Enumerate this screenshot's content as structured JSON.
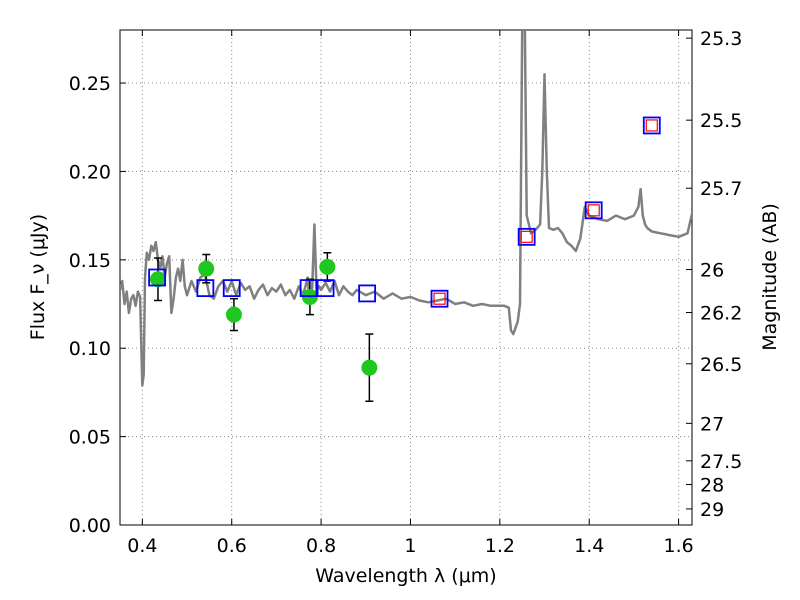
{
  "chart_data": {
    "type": "scatter",
    "xlabel": "Wavelength λ (μm)",
    "ylabel": "Flux F_ν (μJy)",
    "ylabel_right": "Magnitude (AB)",
    "xlim": [
      0.35,
      1.63
    ],
    "ylim": [
      0.0,
      0.28
    ],
    "grid": true,
    "x_ticks": [
      "0.4",
      "0.6",
      "0.8",
      "1",
      "1.2",
      "1.4",
      "1.6"
    ],
    "x_tick_values": [
      0.4,
      0.6,
      0.8,
      1.0,
      1.2,
      1.4,
      1.6
    ],
    "y_ticks": [
      "0.00",
      "0.05",
      "0.10",
      "0.15",
      "0.20",
      "0.25"
    ],
    "y_tick_values": [
      0.0,
      0.05,
      0.1,
      0.15,
      0.2,
      0.25
    ],
    "right_ticks": [
      "25.3",
      "25.5",
      "25.7",
      "26",
      "26.2",
      "26.5",
      "27",
      "27.5",
      "28",
      "29"
    ],
    "right_tick_flux": [
      0.2754,
      0.229,
      0.1905,
      0.1445,
      0.1202,
      0.0912,
      0.0575,
      0.0363,
      0.0229,
      0.0091
    ],
    "colors": {
      "spectrum": "#808080",
      "observed": "#1ec81e",
      "errorbar": "#000000",
      "model_band": "#0000ff",
      "model_band_inner": "#ff0000",
      "grid": "#888888"
    },
    "series": [
      {
        "marker": "spectrum-line",
        "x": [
          0.35,
          0.355,
          0.36,
          0.365,
          0.37,
          0.375,
          0.38,
          0.385,
          0.39,
          0.395,
          0.4,
          0.403,
          0.406,
          0.41,
          0.415,
          0.42,
          0.425,
          0.43,
          0.435,
          0.44,
          0.445,
          0.45,
          0.455,
          0.46,
          0.465,
          0.47,
          0.475,
          0.48,
          0.485,
          0.49,
          0.495,
          0.5,
          0.51,
          0.52,
          0.53,
          0.54,
          0.55,
          0.56,
          0.57,
          0.58,
          0.59,
          0.6,
          0.61,
          0.62,
          0.63,
          0.64,
          0.65,
          0.66,
          0.67,
          0.68,
          0.69,
          0.7,
          0.71,
          0.72,
          0.73,
          0.74,
          0.75,
          0.76,
          0.77,
          0.775,
          0.78,
          0.785,
          0.79,
          0.795,
          0.8,
          0.81,
          0.82,
          0.83,
          0.84,
          0.85,
          0.86,
          0.87,
          0.88,
          0.9,
          0.92,
          0.94,
          0.96,
          0.98,
          1.0,
          1.02,
          1.04,
          1.06,
          1.08,
          1.1,
          1.12,
          1.14,
          1.16,
          1.18,
          1.2,
          1.21,
          1.22,
          1.225,
          1.23,
          1.24,
          1.245,
          1.25,
          1.253,
          1.256,
          1.26,
          1.265,
          1.27,
          1.28,
          1.29,
          1.295,
          1.3,
          1.305,
          1.31,
          1.32,
          1.33,
          1.34,
          1.35,
          1.36,
          1.37,
          1.38,
          1.39,
          1.4,
          1.42,
          1.44,
          1.46,
          1.48,
          1.5,
          1.51,
          1.515,
          1.52,
          1.525,
          1.53,
          1.54,
          1.56,
          1.58,
          1.6,
          1.62,
          1.63
        ],
        "y": [
          0.133,
          0.138,
          0.125,
          0.132,
          0.12,
          0.128,
          0.13,
          0.124,
          0.132,
          0.129,
          0.079,
          0.085,
          0.14,
          0.154,
          0.15,
          0.158,
          0.155,
          0.16,
          0.15,
          0.145,
          0.152,
          0.14,
          0.148,
          0.152,
          0.12,
          0.128,
          0.14,
          0.145,
          0.138,
          0.15,
          0.135,
          0.13,
          0.138,
          0.132,
          0.14,
          0.142,
          0.13,
          0.128,
          0.135,
          0.138,
          0.132,
          0.138,
          0.13,
          0.137,
          0.133,
          0.135,
          0.128,
          0.133,
          0.136,
          0.13,
          0.134,
          0.132,
          0.136,
          0.13,
          0.133,
          0.128,
          0.135,
          0.13,
          0.14,
          0.125,
          0.134,
          0.17,
          0.132,
          0.135,
          0.133,
          0.137,
          0.132,
          0.138,
          0.13,
          0.135,
          0.132,
          0.13,
          0.133,
          0.13,
          0.132,
          0.128,
          0.131,
          0.128,
          0.129,
          0.127,
          0.126,
          0.127,
          0.128,
          0.125,
          0.126,
          0.124,
          0.125,
          0.124,
          0.124,
          0.124,
          0.123,
          0.11,
          0.108,
          0.115,
          0.125,
          0.28,
          0.28,
          0.28,
          0.175,
          0.17,
          0.165,
          0.167,
          0.17,
          0.2,
          0.255,
          0.2,
          0.168,
          0.167,
          0.168,
          0.165,
          0.16,
          0.158,
          0.155,
          0.162,
          0.18,
          0.175,
          0.173,
          0.172,
          0.175,
          0.173,
          0.175,
          0.18,
          0.19,
          0.175,
          0.17,
          0.168,
          0.166,
          0.165,
          0.164,
          0.163,
          0.165,
          0.176
        ]
      },
      {
        "marker": "filled-circle-with-errorbars",
        "x": [
          0.435,
          0.543,
          0.605,
          0.775,
          0.814,
          0.908
        ],
        "y": [
          0.139,
          0.145,
          0.119,
          0.129,
          0.146,
          0.089
        ],
        "yerr": [
          0.012,
          0.008,
          0.009,
          0.01,
          0.008,
          0.019
        ]
      },
      {
        "marker": "open-square",
        "x": [
          0.433,
          0.541,
          0.6,
          0.772,
          0.81,
          0.903,
          1.065,
          1.26,
          1.41,
          1.54
        ],
        "y": [
          0.14,
          0.134,
          0.134,
          0.134,
          0.134,
          0.131,
          0.128,
          0.163,
          0.178,
          0.226
        ]
      },
      {
        "marker": "open-square-inner",
        "x": [
          1.065,
          1.26,
          1.41,
          1.54
        ],
        "y": [
          0.128,
          0.163,
          0.178,
          0.226
        ]
      }
    ]
  }
}
